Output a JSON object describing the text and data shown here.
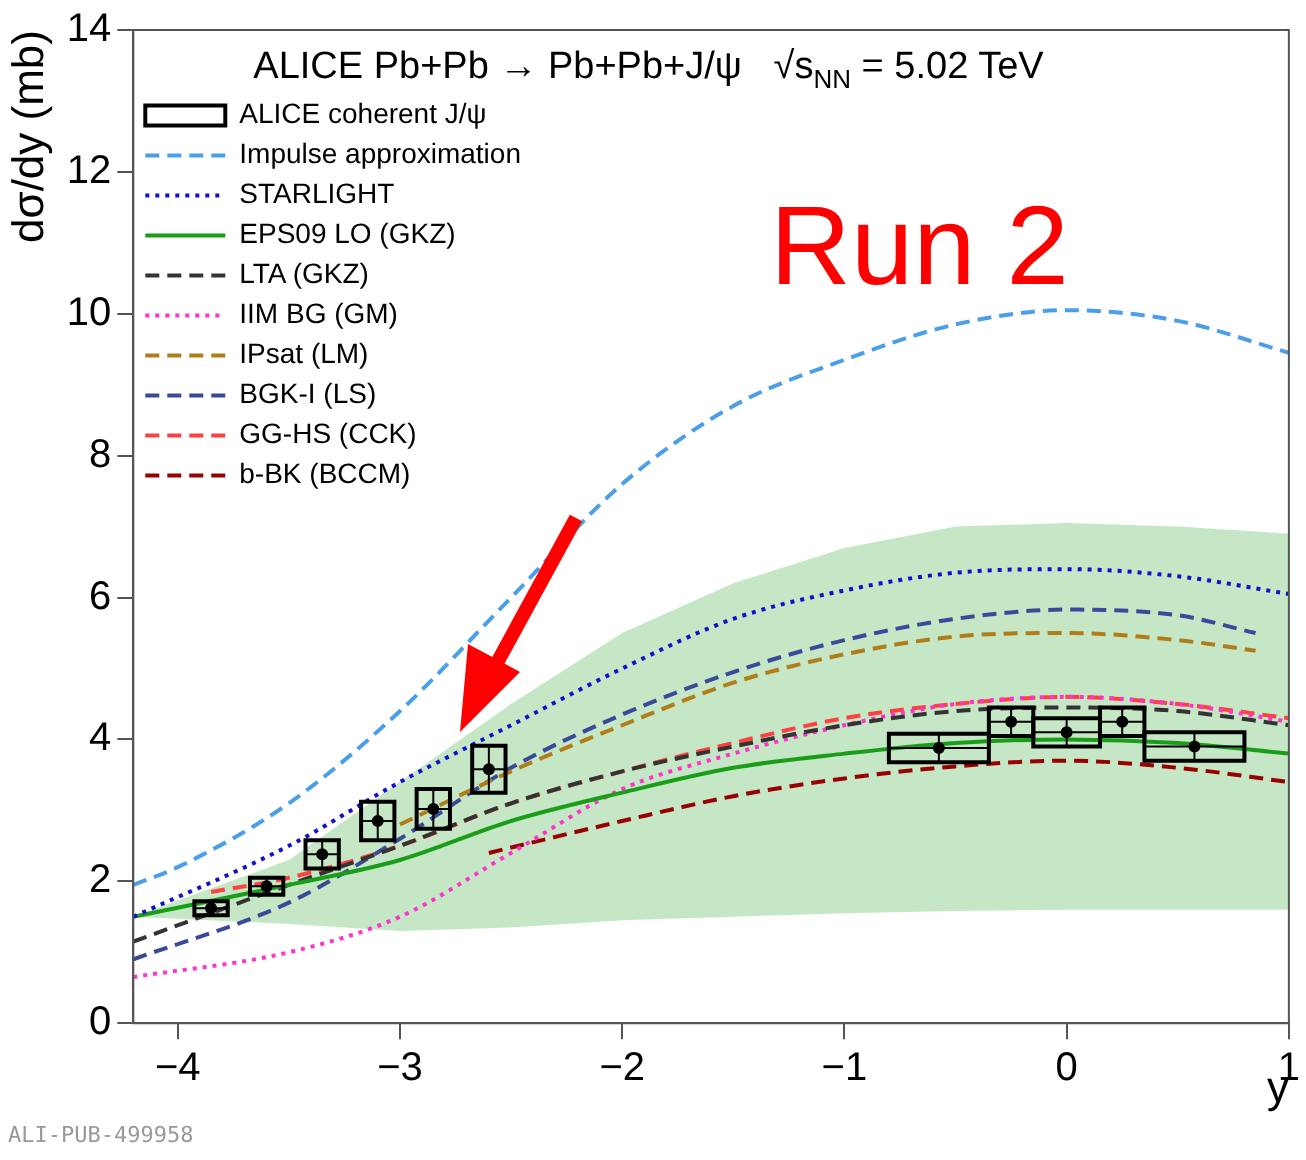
{
  "chart_data": {
    "type": "line",
    "title": "ALICE Pb+Pb → Pb+Pb+J/ψ   √s$_{NN}$ = 5.02 TeV",
    "xlabel": "y",
    "ylabel": "dσ/dy (mb)",
    "xlim": [
      -4.2,
      1
    ],
    "xticks": [
      -4,
      -3,
      -2,
      -1,
      0,
      1
    ],
    "ylim": [
      0,
      14
    ],
    "yticks": [
      0,
      2,
      4,
      6,
      8,
      10,
      12,
      14
    ],
    "grid": false,
    "legend": "top left",
    "annotations": [
      "Run 2",
      "ALI-PUB-499958"
    ],
    "series": [
      {
        "name": "ALICE coherent J/ψ",
        "type": "scatter",
        "marker": "circle",
        "color": "#000000",
        "x": [
          -3.85,
          -3.6,
          -3.35,
          -3.1,
          -2.85,
          -2.6,
          -0.575,
          -0.25,
          0,
          0.25,
          0.575
        ],
        "values": [
          1.62,
          1.93,
          2.38,
          2.85,
          3.02,
          3.58,
          3.88,
          4.25,
          4.1,
          4.25,
          3.9
        ],
        "errors": [
          0.1,
          0.12,
          0.2,
          0.27,
          0.28,
          0.33,
          0.2,
          0.2,
          0.2,
          0.2,
          0.2
        ],
        "xerrors": [
          0.075,
          0.075,
          0.075,
          0.075,
          0.075,
          0.075,
          0.225,
          0.1,
          0.15,
          0.1,
          0.225
        ]
      },
      {
        "name": "Impulse approximation",
        "line_style": "dashed",
        "color": "#4a9fe8",
        "x": [
          -4.2,
          -4,
          -3.5,
          -3,
          -2.5,
          -2,
          -1.5,
          -1,
          -0.5,
          0,
          0.5,
          1
        ],
        "values": [
          1.95,
          2.2,
          3.1,
          4.4,
          6.0,
          7.6,
          8.7,
          9.35,
          9.85,
          10.05,
          9.9,
          9.45
        ]
      },
      {
        "name": "STARLIGHT",
        "line_style": "dotted",
        "color": "#1010d0",
        "x": [
          -4.2,
          -3.5,
          -3,
          -2.5,
          -2,
          -1.5,
          -1,
          -0.5,
          0,
          0.5,
          1
        ],
        "values": [
          1.5,
          2.5,
          3.4,
          4.2,
          5.0,
          5.7,
          6.1,
          6.35,
          6.4,
          6.3,
          6.05
        ]
      },
      {
        "name": "EPS09 LO (GKZ)",
        "line_style": "solid",
        "color": "#1a9e1a",
        "x": [
          -4.2,
          -3.5,
          -3,
          -2.5,
          -2,
          -1.5,
          -1,
          -0.5,
          0,
          0.5,
          1
        ],
        "values": [
          1.5,
          1.95,
          2.3,
          2.85,
          3.25,
          3.6,
          3.8,
          3.95,
          4.0,
          3.95,
          3.8
        ],
        "lower": [
          1.5,
          1.4,
          1.3,
          1.35,
          1.45,
          1.5,
          1.55,
          1.58,
          1.6,
          1.6,
          1.6
        ],
        "upper": [
          1.5,
          2.3,
          3.4,
          4.5,
          5.5,
          6.2,
          6.7,
          7.0,
          7.05,
          7.0,
          6.9
        ]
      },
      {
        "name": "LTA (GKZ)",
        "line_style": "dashed",
        "color": "#333333",
        "x": [
          -4.2,
          -3.5,
          -3,
          -2.5,
          -2,
          -1.5,
          -1,
          -0.5,
          0,
          0.5,
          1
        ],
        "values": [
          1.15,
          1.95,
          2.5,
          3.1,
          3.55,
          3.9,
          4.2,
          4.4,
          4.45,
          4.4,
          4.2
        ]
      },
      {
        "name": "IIM BG (GM)",
        "line_style": "dotted",
        "color": "#ff33cc",
        "x": [
          -4.2,
          -3.5,
          -3,
          -2.5,
          -2,
          -1.5,
          -1,
          -0.5,
          0,
          0.5,
          1
        ],
        "values": [
          0.65,
          1.0,
          1.5,
          2.4,
          3.3,
          3.8,
          4.2,
          4.5,
          4.6,
          4.5,
          4.25
        ]
      },
      {
        "name": "IPsat (LM)",
        "line_style": "dashed",
        "color": "#b07d1a",
        "x": [
          -3,
          -2.5,
          -2,
          -1.5,
          -1,
          -0.5,
          0,
          0.5,
          0.85
        ],
        "values": [
          2.8,
          3.55,
          4.2,
          4.8,
          5.2,
          5.45,
          5.5,
          5.4,
          5.25
        ]
      },
      {
        "name": "BGK-I (LS)",
        "line_style": "dashed",
        "color": "#3a4a9a",
        "x": [
          -4.2,
          -3.5,
          -3,
          -2.5,
          -2,
          -1.5,
          -1,
          -0.5,
          0,
          0.5,
          0.85
        ],
        "values": [
          0.9,
          1.7,
          2.6,
          3.6,
          4.35,
          4.95,
          5.4,
          5.7,
          5.83,
          5.75,
          5.5
        ]
      },
      {
        "name": "GG-HS (CCK)",
        "line_style": "dashed",
        "color": "#ff4040",
        "x": [
          -3.85,
          -3.5,
          -3,
          -2.5,
          -2,
          -1.5,
          -1,
          -0.5,
          0,
          0.5,
          1
        ],
        "values": [
          1.85,
          2.05,
          2.5,
          3.1,
          3.55,
          3.95,
          4.3,
          4.5,
          4.6,
          4.5,
          4.3
        ]
      },
      {
        "name": "b-BK (BCCM)",
        "line_style": "dashed",
        "color": "#990000",
        "x": [
          -2.6,
          -2,
          -1.5,
          -1,
          -0.5,
          0,
          0.5,
          1
        ],
        "values": [
          2.4,
          2.85,
          3.2,
          3.45,
          3.62,
          3.7,
          3.6,
          3.4
        ]
      }
    ]
  }
}
